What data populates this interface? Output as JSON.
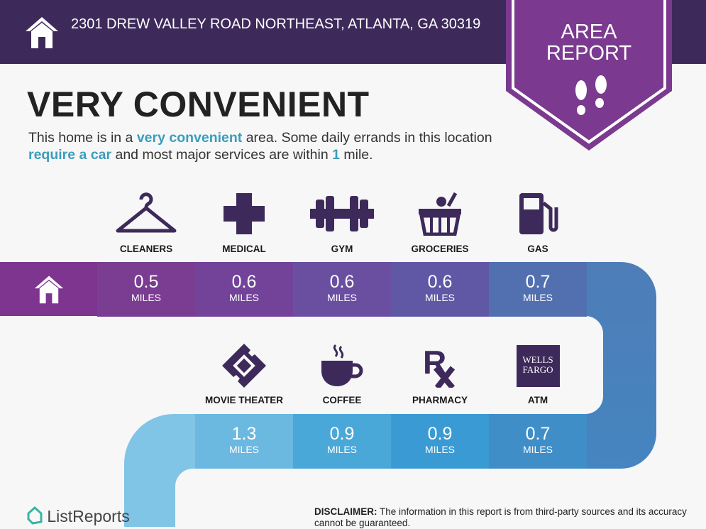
{
  "header": {
    "address": "2301 DREW VALLEY ROAD NORTHEAST, ATLANTA, GA 30319",
    "icon": "home-icon"
  },
  "badge": {
    "line1": "AREA",
    "line2": "REPORT",
    "icon": "footprints-icon",
    "color": "#7b3a8f"
  },
  "title": "VERY CONVENIENT",
  "description": {
    "p1": "This home is in a ",
    "h1": "very convenient",
    "p2": " area. Some daily errands in this location ",
    "h2": "require a car",
    "p3": " and most major services are within ",
    "h3": "1",
    "p4": " mile."
  },
  "unit": "MILES",
  "row1": [
    {
      "label": "CLEANERS",
      "value": "0.5",
      "icon": "hanger-icon"
    },
    {
      "label": "MEDICAL",
      "value": "0.6",
      "icon": "medical-cross-icon"
    },
    {
      "label": "GYM",
      "value": "0.6",
      "icon": "dumbbell-icon"
    },
    {
      "label": "GROCERIES",
      "value": "0.6",
      "icon": "grocery-basket-icon"
    },
    {
      "label": "GAS",
      "value": "0.7",
      "icon": "gas-pump-icon"
    }
  ],
  "row2": [
    {
      "label": "MOVIE THEATER",
      "value": "1.3",
      "icon": "ticket-icon"
    },
    {
      "label": "COFFEE",
      "value": "0.9",
      "icon": "coffee-cup-icon"
    },
    {
      "label": "PHARMACY",
      "value": "0.9",
      "icon": "rx-icon"
    },
    {
      "label": "ATM",
      "value": "0.7",
      "icon": "wells-fargo-logo",
      "logo_text": "WELLS FARGO"
    }
  ],
  "footer": {
    "logo": "ListReports",
    "disclaimer_label": "DISCLAIMER:",
    "disclaimer": " The information in this report is from third-party sources and its accuracy cannot be guaranteed."
  }
}
